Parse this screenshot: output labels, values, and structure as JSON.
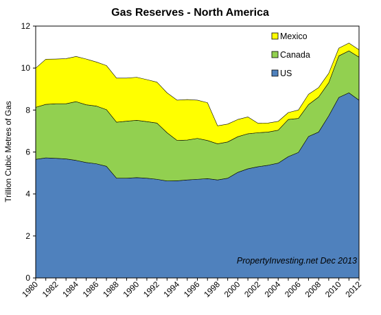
{
  "chart_data": {
    "type": "area",
    "title": "Gas Reserves - North America",
    "xlabel": "",
    "ylabel": "Trillion Cubic Metres of Gas",
    "x": [
      1980,
      1981,
      1982,
      1983,
      1984,
      1985,
      1986,
      1987,
      1988,
      1989,
      1990,
      1991,
      1992,
      1993,
      1994,
      1995,
      1996,
      1997,
      1998,
      1999,
      2000,
      2001,
      2002,
      2003,
      2004,
      2005,
      2006,
      2007,
      2008,
      2009,
      2010,
      2011,
      2012
    ],
    "x_tick_labels": [
      "1980",
      "1982",
      "1984",
      "1986",
      "1988",
      "1990",
      "1992",
      "1994",
      "1996",
      "1998",
      "2000",
      "2002",
      "2004",
      "2006",
      "2008",
      "2010",
      "2012"
    ],
    "ylim": [
      0,
      12
    ],
    "y_ticks": [
      "0",
      "2",
      "4",
      "6",
      "8",
      "10",
      "12"
    ],
    "stacked": true,
    "grid": false,
    "legend_position": "top-right",
    "series": [
      {
        "name": "US",
        "color": "#4f81bd",
        "values": [
          5.65,
          5.72,
          5.7,
          5.67,
          5.6,
          5.5,
          5.44,
          5.32,
          4.75,
          4.75,
          4.78,
          4.75,
          4.7,
          4.62,
          4.63,
          4.67,
          4.7,
          4.73,
          4.67,
          4.75,
          5.03,
          5.2,
          5.3,
          5.37,
          5.47,
          5.78,
          5.98,
          6.74,
          6.95,
          7.72,
          8.6,
          8.82,
          8.47
        ]
      },
      {
        "name": "Canada",
        "color": "#92d050",
        "values": [
          2.48,
          2.55,
          2.6,
          2.63,
          2.8,
          2.75,
          2.75,
          2.7,
          2.67,
          2.72,
          2.73,
          2.7,
          2.68,
          2.3,
          1.92,
          1.9,
          1.95,
          1.82,
          1.72,
          1.73,
          1.7,
          1.67,
          1.62,
          1.58,
          1.57,
          1.77,
          1.62,
          1.52,
          1.67,
          1.58,
          1.98,
          2.0,
          2.05
        ]
      },
      {
        "name": "Mexico",
        "color": "#ffff00",
        "values": [
          1.87,
          2.15,
          2.13,
          2.15,
          2.15,
          2.18,
          2.1,
          2.1,
          2.1,
          2.05,
          2.05,
          2.0,
          1.95,
          1.9,
          1.92,
          1.93,
          1.82,
          1.8,
          0.86,
          0.85,
          0.82,
          0.8,
          0.45,
          0.43,
          0.42,
          0.33,
          0.4,
          0.49,
          0.45,
          0.45,
          0.37,
          0.37,
          0.35
        ]
      }
    ],
    "legend_order": [
      "Mexico",
      "Canada",
      "US"
    ],
    "annotation": "PropertyInvesting.net Dec 2013"
  }
}
